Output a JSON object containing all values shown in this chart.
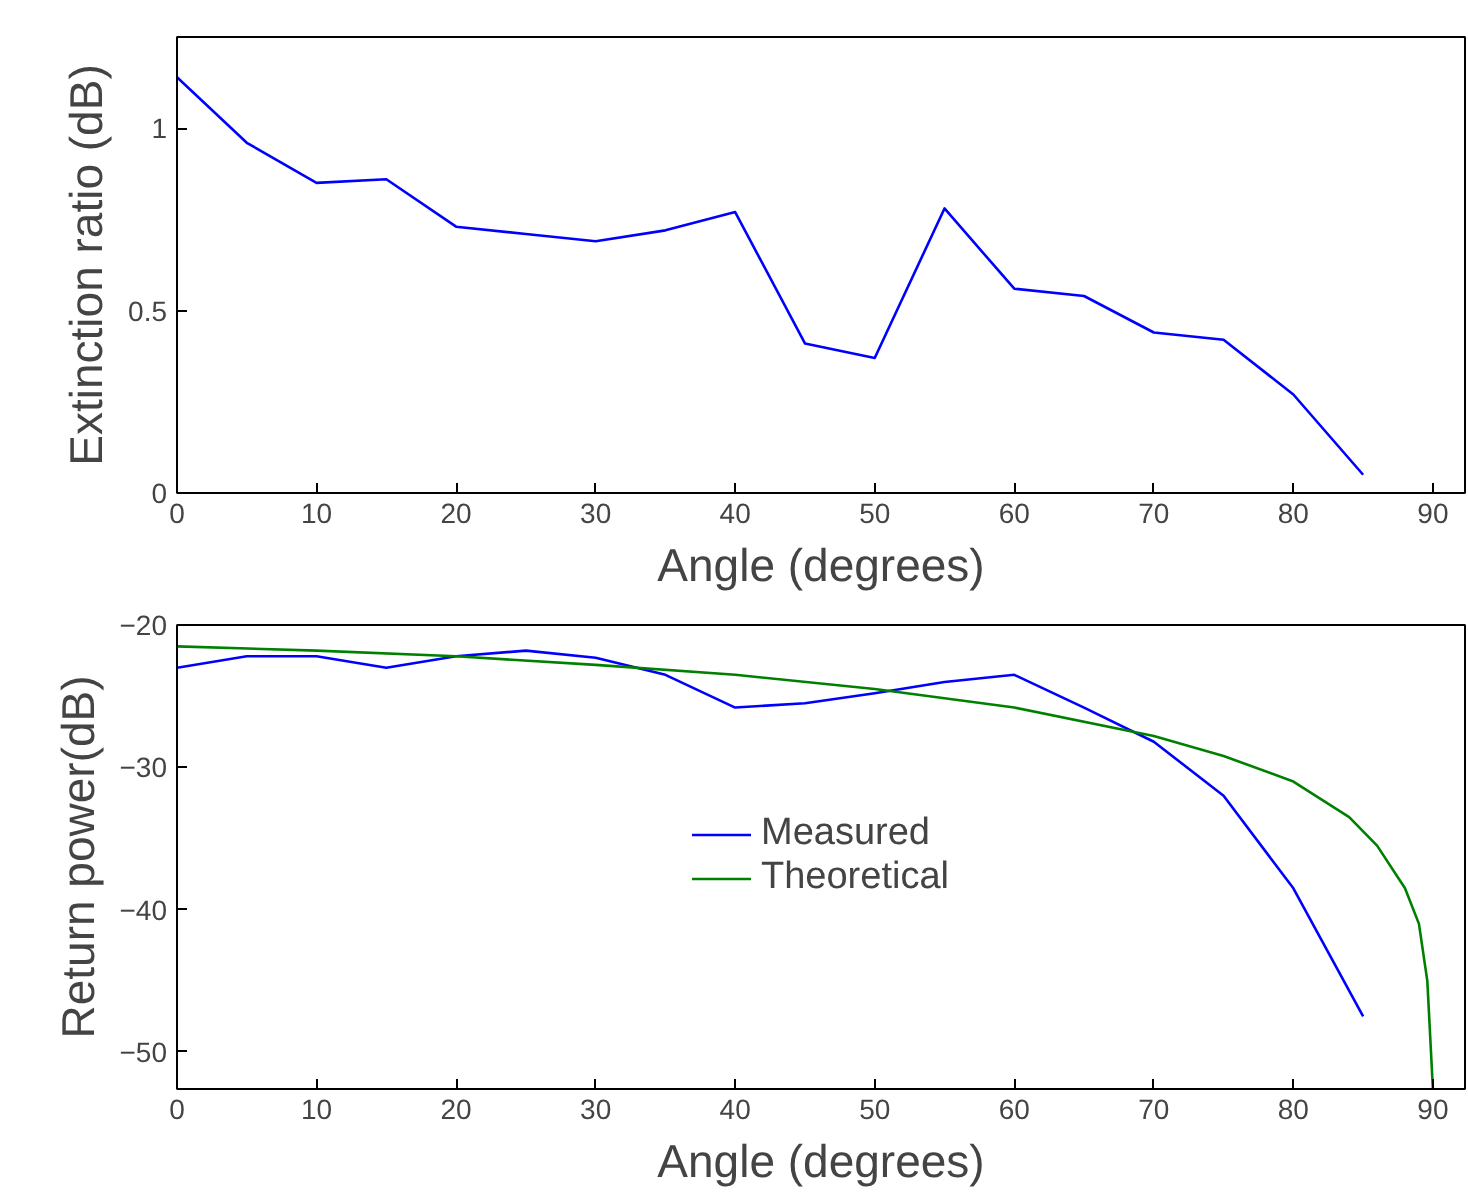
{
  "chart_data": [
    {
      "type": "line",
      "xlabel": "Angle (degrees)",
      "ylabel": "Extinction ratio (dB)",
      "xlim": [
        0,
        92.3
      ],
      "ylim": [
        0,
        1.25
      ],
      "xticks": [
        0,
        10,
        20,
        30,
        40,
        50,
        60,
        70,
        80,
        90
      ],
      "yticks": [
        0,
        0.5,
        1
      ],
      "grid": false,
      "legend": false,
      "x": [
        0,
        5,
        10,
        15,
        20,
        25,
        30,
        35,
        40,
        45,
        50,
        55,
        60,
        65,
        70,
        75,
        80,
        85
      ],
      "series": [
        {
          "color": "#0000ff",
          "values": [
            1.14,
            0.96,
            0.85,
            0.86,
            0.73,
            0.71,
            0.69,
            0.72,
            0.77,
            0.41,
            0.37,
            0.78,
            0.56,
            0.54,
            0.44,
            0.42,
            0.27,
            0.05
          ]
        }
      ]
    },
    {
      "type": "line",
      "xlabel": "Angle (degrees)",
      "ylabel": "Return power(dB)",
      "xlim": [
        0,
        92.3
      ],
      "ylim": [
        -52.6,
        -20
      ],
      "xticks": [
        0,
        10,
        20,
        30,
        40,
        50,
        60,
        70,
        80,
        90
      ],
      "yticks": [
        -20,
        -30,
        -40,
        -50
      ],
      "grid": false,
      "legend": "center",
      "series": [
        {
          "name": "Measured",
          "color": "#0000ff",
          "x": [
            0,
            5,
            10,
            15,
            20,
            25,
            30,
            35,
            40,
            45,
            50,
            55,
            60,
            65,
            70,
            75,
            80,
            85
          ],
          "values": [
            -23,
            -22.2,
            -22.2,
            -23,
            -22.2,
            -21.8,
            -22.3,
            -23.5,
            -25.8,
            -25.5,
            -24.8,
            -24,
            -23.5,
            -25.8,
            -28.2,
            -32,
            -38.5,
            -47.5
          ]
        },
        {
          "name": "Theoretical",
          "color": "#008000",
          "x": [
            0,
            10,
            20,
            30,
            40,
            50,
            60,
            70,
            75,
            80,
            84,
            86,
            88,
            89,
            89.6,
            90
          ],
          "values": [
            -21.5,
            -21.8,
            -22.2,
            -22.8,
            -23.5,
            -24.5,
            -25.8,
            -27.8,
            -29.2,
            -31,
            -33.5,
            -35.5,
            -38.5,
            -41,
            -45,
            -52.6
          ]
        }
      ]
    }
  ]
}
